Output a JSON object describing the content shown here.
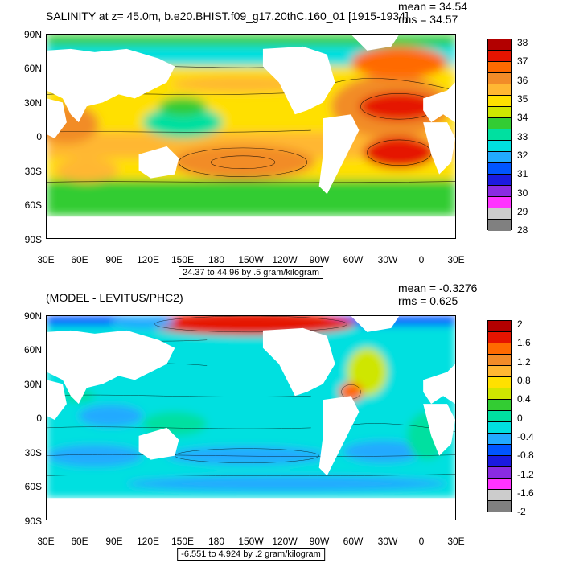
{
  "maps": [
    {
      "title": "SALINITY at z=  45.0m, b.e20.BHIST.f09_g17.20thC.160_01 [1915-1934]",
      "mean": "mean = 34.54",
      "rms": "rms = 34.57",
      "range": "24.37 to 44.96 by .5 gram/kilogram",
      "colorbar": {
        "colors": [
          "#b20000",
          "#e51400",
          "#ff6a00",
          "#f28c28",
          "#ffb733",
          "#ffe000",
          "#cfe600",
          "#33cc33",
          "#00e0a0",
          "#00e0e0",
          "#22aaff",
          "#0055ff",
          "#1a1ae0",
          "#8a2be2",
          "#ff33ff",
          "#cccccc",
          "#808080"
        ],
        "labels": [
          "38",
          "37",
          "36",
          "35",
          "34",
          "33",
          "32",
          "31",
          "30",
          "29",
          "28"
        ]
      }
    },
    {
      "title": "(MODEL - LEVITUS/PHC2)",
      "mean": "mean = -0.3276",
      "rms": "rms = 0.625",
      "range": "-6.551 to 4.924 by .2 gram/kilogram",
      "colorbar": {
        "colors": [
          "#b20000",
          "#e51400",
          "#ff6a00",
          "#f28c28",
          "#ffb733",
          "#ffe000",
          "#cfe600",
          "#33cc33",
          "#00e0a0",
          "#00e0e0",
          "#22aaff",
          "#0055ff",
          "#1a1ae0",
          "#8a2be2",
          "#ff33ff",
          "#cccccc",
          "#808080"
        ],
        "labels": [
          "2",
          "1.6",
          "1.2",
          "0.8",
          "0.4",
          "0",
          "-0.4",
          "-0.8",
          "-1.2",
          "-1.6",
          "-2"
        ]
      }
    }
  ],
  "axes": {
    "lat_labels": [
      "90N",
      "60N",
      "30N",
      "0",
      "30S",
      "60S",
      "90S"
    ],
    "lon_labels": [
      "30E",
      "60E",
      "90E",
      "120E",
      "150E",
      "180",
      "150W",
      "120W",
      "90W",
      "60W",
      "30W",
      "0",
      "30E"
    ]
  }
}
